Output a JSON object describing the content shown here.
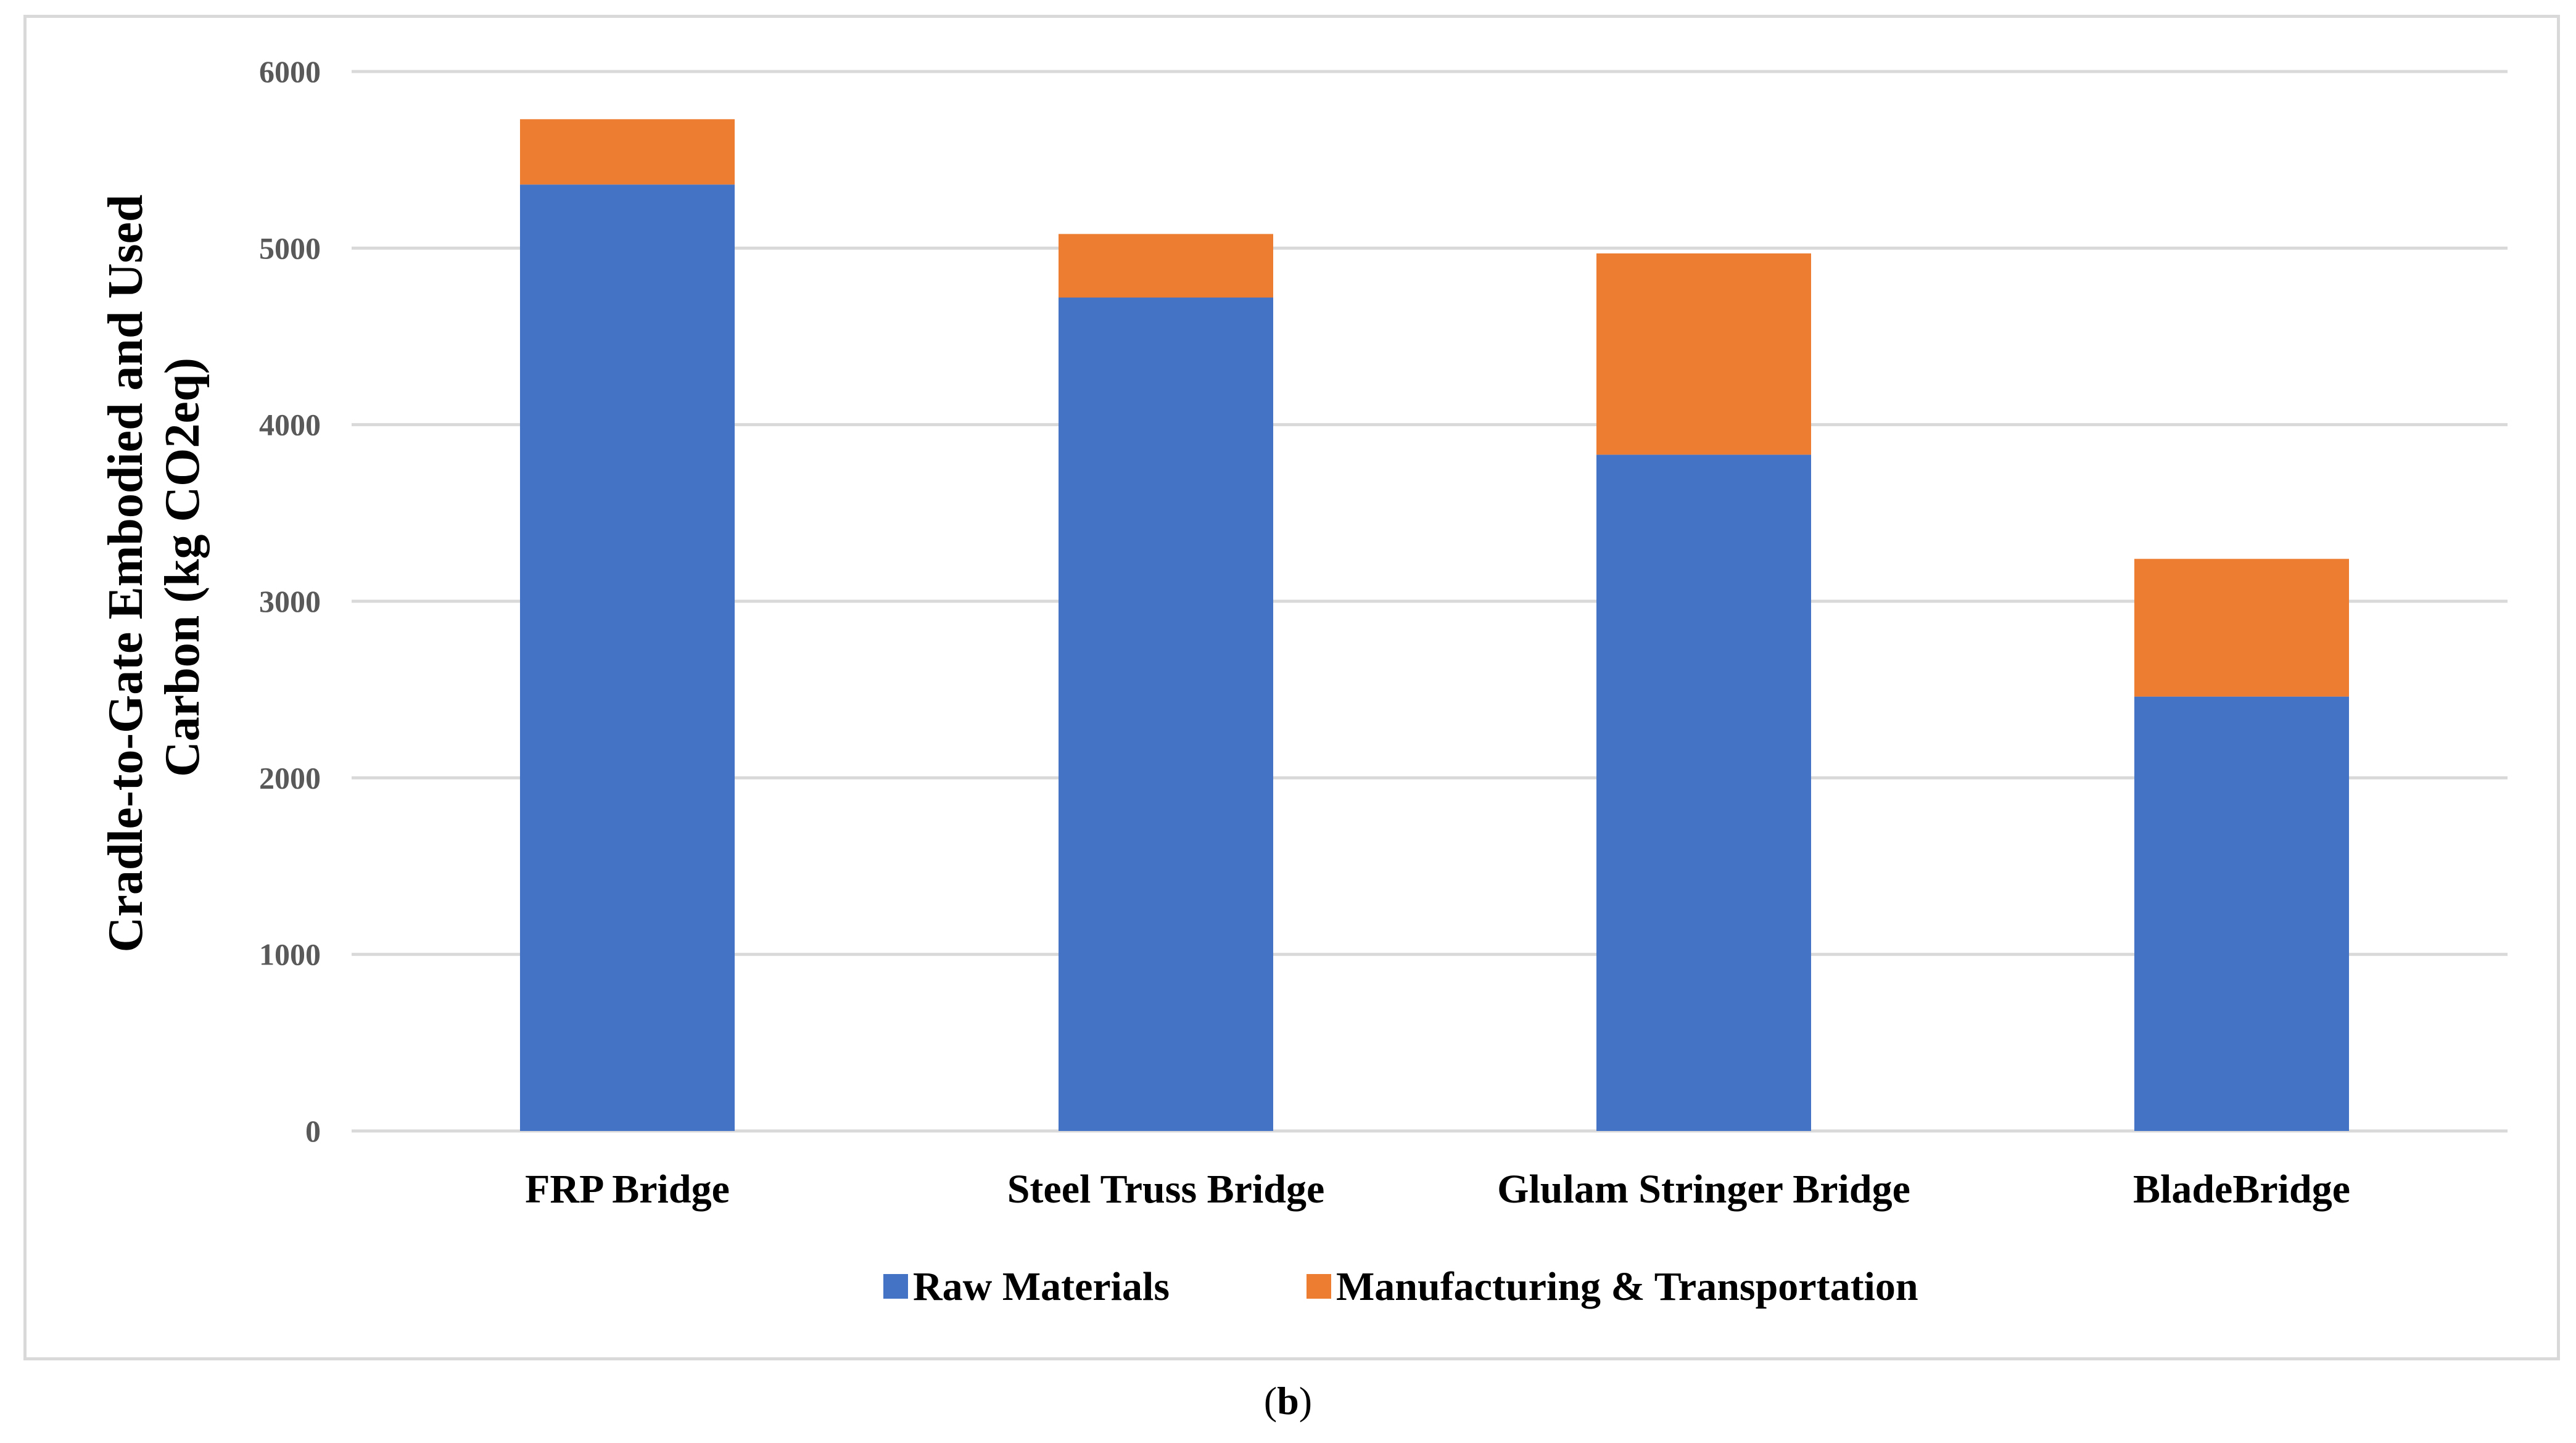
{
  "caption": {
    "open": "(",
    "letter": "b",
    "close": ")"
  },
  "chart_data": {
    "type": "bar",
    "stacked": true,
    "categories": [
      "FRP Bridge",
      "Steel Truss Bridge",
      "Glulam Stringer Bridge",
      "BladeBridge"
    ],
    "series": [
      {
        "name": "Raw Materials",
        "color": "#4472c4",
        "values": [
          5360,
          4720,
          3830,
          2460
        ]
      },
      {
        "name": "Manufacturing & Transportation",
        "color": "#ed7d31",
        "values": [
          370,
          360,
          1140,
          780
        ]
      }
    ],
    "ylabel_lines": [
      "Cradle-to-Gate  Embodied and Used",
      "Carbon (kg CO2eq)"
    ],
    "ylim": [
      0,
      6000
    ],
    "yticks": [
      0,
      1000,
      2000,
      3000,
      4000,
      5000,
      6000
    ],
    "grid": true,
    "legend_position": "bottom",
    "grid_color": "#d9d9d9"
  }
}
